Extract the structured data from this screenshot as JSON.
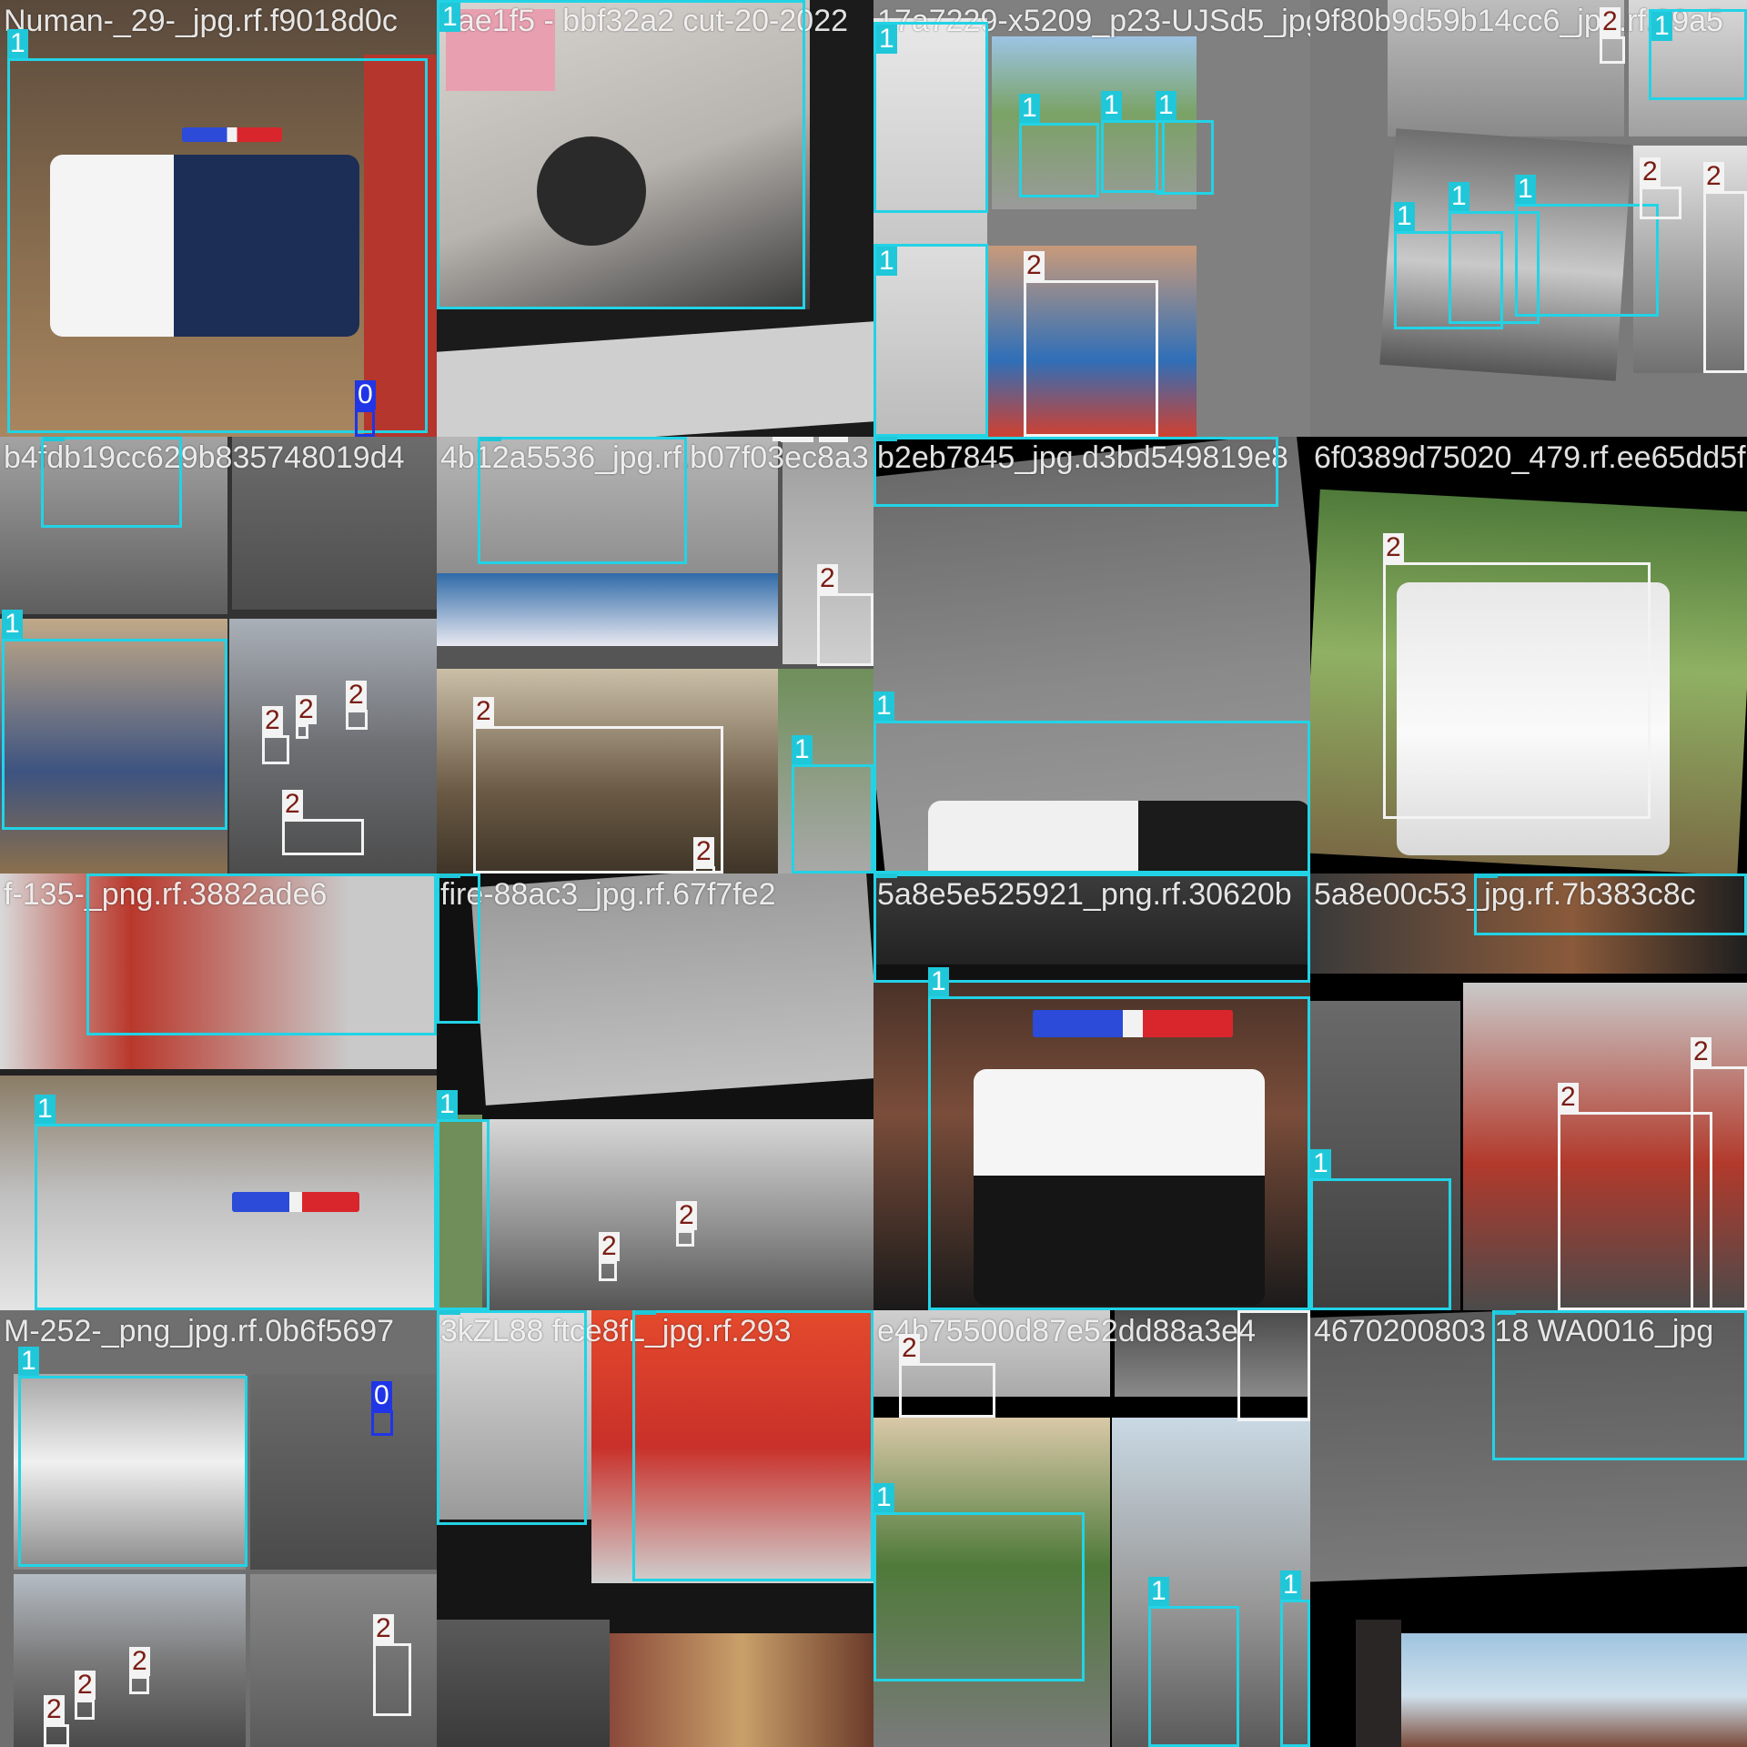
{
  "colors": {
    "class_0": "#1f35e6",
    "class_1": "#22d3e6",
    "class_2": "#f3f3f3",
    "label_text_2": "#7a1d14"
  },
  "tiles": [
    {
      "title": "Numan-_29-_jpg.rf.f9018d0c",
      "labels": [
        "1",
        "0"
      ]
    },
    {
      "title": "7ae1f5 - bbf32a2 cut-20-2022",
      "labels": [
        "1"
      ]
    },
    {
      "title": "17a7229-x5209_p23-UJSd5_jpg",
      "labels": [
        "1",
        "1",
        "1",
        "1",
        "1",
        "2"
      ]
    },
    {
      "title": "9f80b9d59b14cc6_jpg.rf.39a5",
      "labels": [
        "2",
        "1",
        "1",
        "1",
        "1",
        "2",
        "2"
      ]
    },
    {
      "title": "b4fdb19cc629b835748019d4",
      "labels": [
        "1",
        "1",
        "2",
        "2",
        "2",
        "2"
      ]
    },
    {
      "title": "4b12a5536_jpg.rf.b07f03ec8a3",
      "labels": [
        "1",
        "2",
        "2",
        "2",
        "2",
        "1",
        "2"
      ]
    },
    {
      "title": "b2eb7845_jpg.d3bd549819e8",
      "labels": [
        "1",
        "1"
      ]
    },
    {
      "title": "6f0389d75020_479.rf.ee65dd5f",
      "labels": [
        "2"
      ]
    },
    {
      "title": "f-135-_png.rf.3882ade6",
      "labels": [
        "1",
        "1"
      ]
    },
    {
      "title": "fire-88ac3_jpg.rf.67f7fe2",
      "labels": [
        "1",
        "1",
        "2",
        "2"
      ]
    },
    {
      "title": "5a8e5e525921_png.rf.30620b",
      "labels": [
        "1",
        "1"
      ]
    },
    {
      "title": "5a8e00c53_jpg.rf.7b383c8c",
      "labels": [
        "1",
        "2",
        "2",
        "1"
      ]
    },
    {
      "title": "M-252-_png_jpg.rf.0b6f5697",
      "labels": [
        "1",
        "0",
        "2",
        "2",
        "2",
        "2"
      ]
    },
    {
      "title": "3kZL88 ftce8fL_jpg.rf.293",
      "labels": [
        "1",
        "1"
      ]
    },
    {
      "title": "e4b75500d87e52dd88a3e4",
      "labels": [
        "2",
        "2",
        "1",
        "1",
        "1"
      ]
    },
    {
      "title": "4670200803 18 WA0016_jpg",
      "labels": [
        "1"
      ]
    }
  ]
}
